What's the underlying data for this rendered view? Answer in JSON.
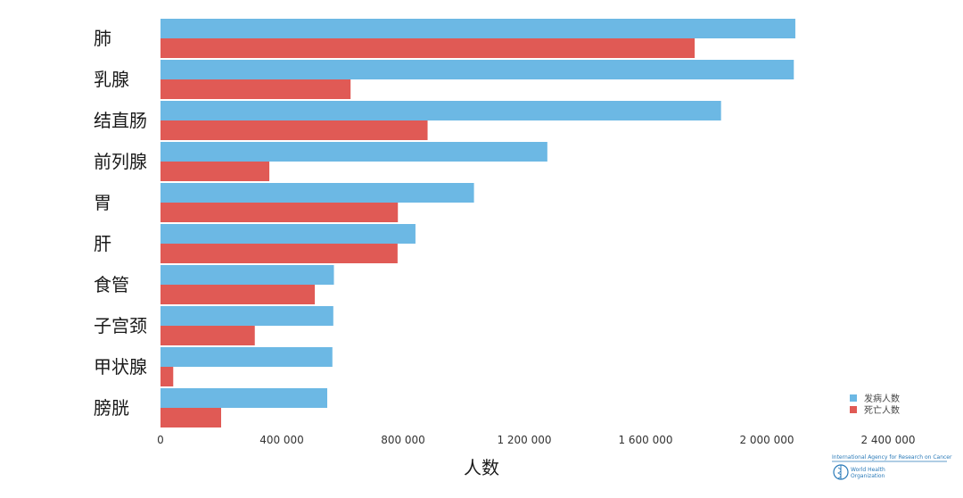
{
  "chart_data": {
    "type": "bar",
    "orientation": "horizontal",
    "categories": [
      "肺",
      "乳腺",
      "结直肠",
      "前列腺",
      "胃",
      "肝",
      "食管",
      "子宫颈",
      "甲状腺",
      "膀胱"
    ],
    "series": [
      {
        "name": "发病人数",
        "color": "#6cb8e4",
        "values": [
          2094000,
          2089000,
          1849000,
          1276000,
          1034000,
          841000,
          572000,
          570000,
          567000,
          550000
        ]
      },
      {
        "name": "死亡人数",
        "color": "#e05a55",
        "values": [
          1762000,
          627000,
          881000,
          359000,
          783000,
          782000,
          509000,
          311000,
          42000,
          200000
        ]
      }
    ],
    "xlabel": "人数",
    "ylabel": "",
    "xlim": [
      0,
      2400000
    ],
    "xticks": [
      0,
      400000,
      800000,
      1200000,
      1600000,
      2000000,
      2400000
    ],
    "xtick_labels": [
      "0",
      "400 000",
      "800 000",
      "1 200 000",
      "1 600 000",
      "2 000 000",
      "2 400 000"
    ],
    "grid": false,
    "legend_position": "bottom-right"
  },
  "footer": {
    "org_line": "International Agency for Research on Cancer",
    "who_line1": "World Health",
    "who_line2": "Organization"
  }
}
